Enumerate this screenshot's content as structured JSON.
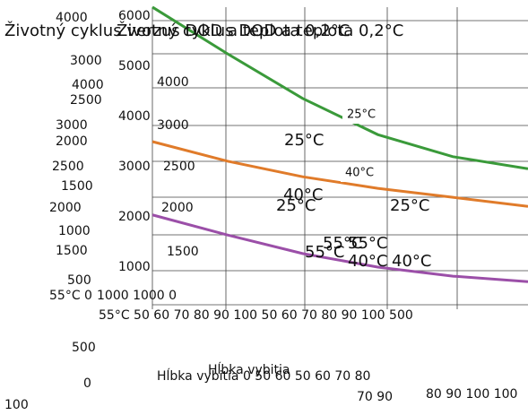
{
  "chart_data": {
    "type": "line",
    "title": "Životný cyklus verzus DOD a teplota 0,2°C",
    "subtitle": "Životný cyklus DOD a teplota 0,2°C",
    "x_label": "Hĺbka vybitia",
    "xlim": [
      50,
      100
    ],
    "x": [
      50,
      60,
      70,
      80,
      90,
      100
    ],
    "ylim": [
      0,
      6000
    ],
    "yticks": [
      1000,
      2000,
      3000,
      4000,
      5000,
      6000
    ],
    "series": [
      {
        "name": "25°C",
        "color": "#3a9a3a",
        "values": [
          6180,
          5250,
          4360,
          3640,
          3200,
          2960
        ]
      },
      {
        "name": "40°C",
        "color": "#e07b2a",
        "values": [
          3500,
          3110,
          2800,
          2570,
          2390,
          2210
        ]
      },
      {
        "name": "55°C",
        "color": "#9b4fa8",
        "values": [
          2040,
          1640,
          1270,
          1000,
          820,
          710
        ]
      }
    ],
    "annotations": [
      "4000",
      "3000",
      "4000",
      "2500",
      "3000",
      "2000",
      "2500",
      "1500",
      "2000",
      "1000",
      "1500",
      "500",
      "55°C 0",
      "1000 1000 0",
      "55°C 50 60 70 80 90 100 50 60 70 80 90 100 500",
      "500",
      "0",
      "100",
      "Hĺbka vybitia 0 50 60 50 60 70 80",
      "70 90",
      "80 90 100 100",
      "4000",
      "3000",
      "2500",
      "2000",
      "1500",
      "25°C",
      "40°C",
      "25°C",
      "25°C",
      "55°C",
      "55°C",
      "40°C",
      "40°C"
    ]
  }
}
